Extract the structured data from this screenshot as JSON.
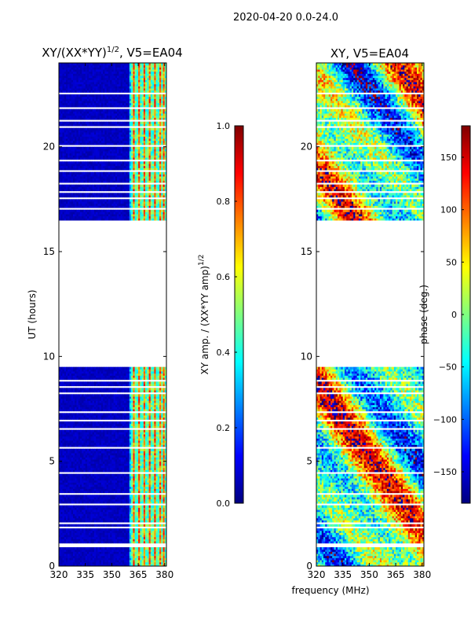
{
  "figure_title": "2020-04-20 0.0-24.0",
  "xlabel": "frequency (MHz)",
  "colors": {
    "jet": [
      "#00007f",
      "#0000ff",
      "#007fff",
      "#00ffff",
      "#7fff7f",
      "#ffff00",
      "#ff7f00",
      "#ff0000",
      "#7f0000"
    ]
  },
  "chart_data": [
    {
      "type": "heatmap",
      "title": "XY/(XX*YY)",
      "title_exponent": "1/2",
      "title_suffix": ", V5=EA04",
      "ylabel": "UT (hours)",
      "xlim": [
        320,
        381
      ],
      "ylim": [
        0,
        24
      ],
      "xticks": [
        320,
        335,
        350,
        365,
        380
      ],
      "yticks": [
        0,
        5,
        10,
        15,
        20
      ],
      "colorbar": {
        "label": "XY amp. / (XX*YY amp)",
        "label_exponent": "1/2",
        "range": [
          0.0,
          1.0
        ],
        "ticks": [
          "0.0",
          "0.2",
          "0.4",
          "0.6",
          "0.8",
          "1.0"
        ]
      },
      "data_gaps_hours": [
        [
          9.5,
          16.5
        ]
      ],
      "description_of_values": "low (~0.05) for 320-360 MHz, higher (~0.3-0.8) in 360-380 MHz band"
    },
    {
      "type": "heatmap",
      "title": "XY, V5=EA04",
      "xlim": [
        320,
        381
      ],
      "ylim": [
        0,
        24
      ],
      "xticks": [
        320,
        335,
        350,
        365,
        380
      ],
      "yticks": [
        0,
        5,
        10,
        15,
        20
      ],
      "colorbar": {
        "label": "phase (deg.)",
        "range": [
          -180,
          180
        ],
        "ticks": [
          "−150",
          "−100",
          "−50",
          "0",
          "50",
          "100",
          "150"
        ]
      },
      "data_gaps_hours": [
        [
          9.5,
          16.5
        ]
      ],
      "description_of_values": "phase in degrees, wrapping between -180 and 180"
    }
  ]
}
